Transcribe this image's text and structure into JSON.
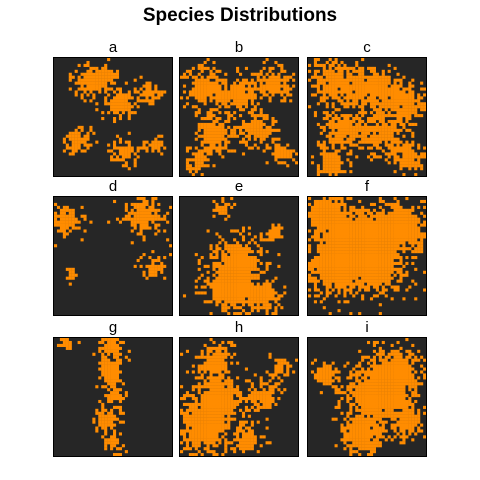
{
  "title": "Species Distributions",
  "colors": {
    "background": "#262626",
    "occupied": "#ff8c00",
    "frame": "#000000"
  },
  "chart_data": {
    "type": "heatmap",
    "title": "Species Distributions",
    "layout": "3x3 grid of presence maps",
    "values_legend": {
      "0": "absent (dark gray)",
      "1": "present (orange)"
    },
    "panels": [
      {
        "label": "a",
        "occupied_fraction": 0.22,
        "pattern": "scattered small patches across the map"
      },
      {
        "label": "b",
        "occupied_fraction": 0.38,
        "pattern": "many medium patches across the map"
      },
      {
        "label": "c",
        "occupied_fraction": 0.52,
        "pattern": "dense network of connected patches"
      },
      {
        "label": "d",
        "occupied_fraction": 0.14,
        "pattern": "few isolated clumps at upper left, upper right and right"
      },
      {
        "label": "e",
        "occupied_fraction": 0.3,
        "pattern": "large central-lower aggregation"
      },
      {
        "label": "f",
        "occupied_fraction": 0.62,
        "pattern": "extensive cover with gaps at the bottom"
      },
      {
        "label": "g",
        "occupied_fraction": 0.14,
        "pattern": "narrow vertical band through the center"
      },
      {
        "label": "h",
        "occupied_fraction": 0.4,
        "pattern": "large patch at lower left spreading upward"
      },
      {
        "label": "i",
        "occupied_fraction": 0.45,
        "pattern": "broad central-right aggregation"
      }
    ]
  }
}
